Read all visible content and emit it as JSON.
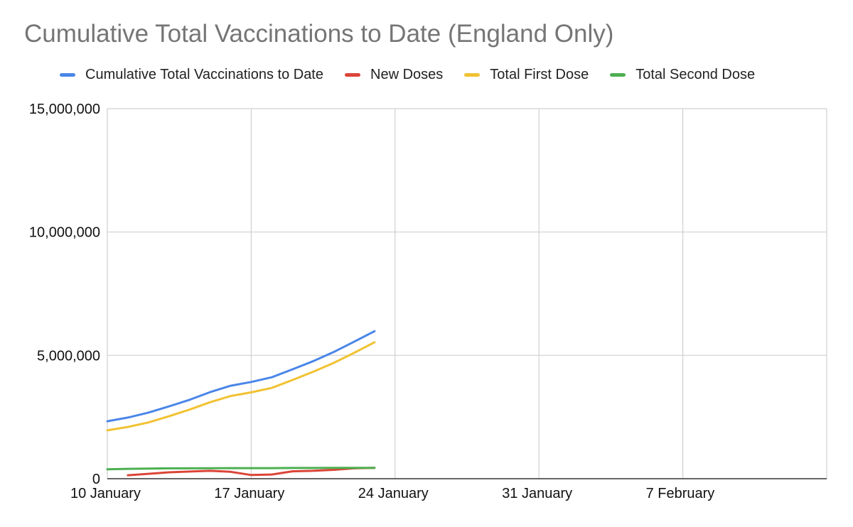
{
  "chart_data": {
    "type": "line",
    "title": "Cumulative Total Vaccinations to Date (England Only)",
    "xlabel": "",
    "ylabel": "",
    "x_ticks": [
      "10 January",
      "17 January",
      "24 January",
      "31 January",
      "7 February"
    ],
    "xlim": [
      "2021-01-10",
      "2021-02-14"
    ],
    "ylim": [
      0,
      15000000
    ],
    "y_ticks": [
      0,
      5000000,
      10000000,
      15000000
    ],
    "y_tick_labels": [
      "0",
      "5,000,000",
      "10,000,000",
      "15,000,000"
    ],
    "grid": true,
    "legend_position": "top",
    "x": [
      "2021-01-10",
      "2021-01-11",
      "2021-01-12",
      "2021-01-13",
      "2021-01-14",
      "2021-01-15",
      "2021-01-16",
      "2021-01-17",
      "2021-01-18",
      "2021-01-19",
      "2021-01-20",
      "2021-01-21",
      "2021-01-22",
      "2021-01-23"
    ],
    "series": [
      {
        "name": "Cumulative Total Vaccinations to Date",
        "color": "#4a86e8",
        "values": [
          2330000,
          2480000,
          2680000,
          2930000,
          3200000,
          3510000,
          3770000,
          3920000,
          4110000,
          4430000,
          4760000,
          5130000,
          5550000,
          5980000
        ]
      },
      {
        "name": "New Doses",
        "color": "#db4437",
        "values": [
          null,
          140000,
          200000,
          260000,
          290000,
          320000,
          280000,
          150000,
          170000,
          300000,
          320000,
          360000,
          420000,
          440000
        ]
      },
      {
        "name": "Total First Dose",
        "color": "#f1c232",
        "values": [
          1960000,
          2100000,
          2280000,
          2530000,
          2800000,
          3100000,
          3350000,
          3500000,
          3680000,
          4000000,
          4330000,
          4690000,
          5100000,
          5530000
        ]
      },
      {
        "name": "Total Second Dose",
        "color": "#4caf50",
        "values": [
          380000,
          400000,
          410000,
          420000,
          420000,
          425000,
          430000,
          430000,
          430000,
          435000,
          435000,
          440000,
          440000,
          440000
        ]
      }
    ]
  }
}
